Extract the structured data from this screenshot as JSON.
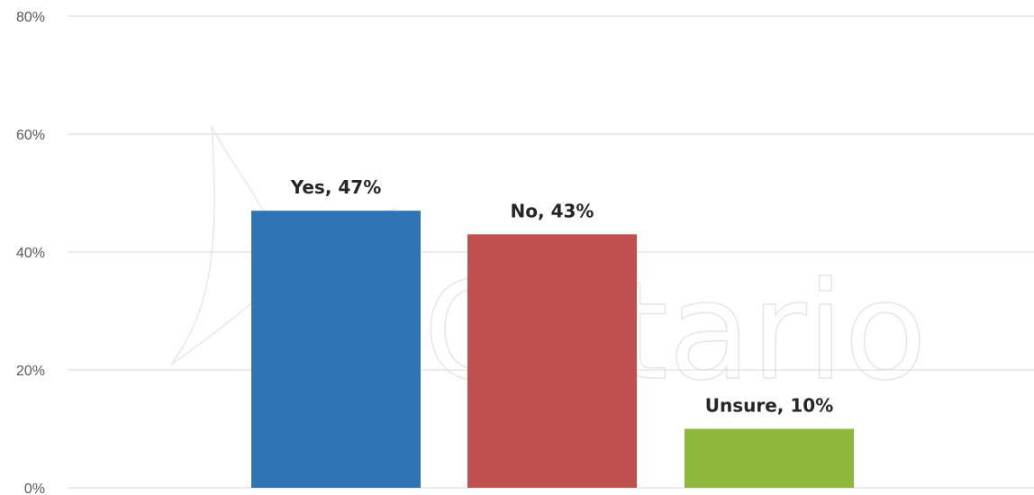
{
  "chart_data": {
    "type": "bar",
    "categories": [
      "Yes",
      "No",
      "Unsure"
    ],
    "values": [
      47,
      43,
      10
    ],
    "data_labels": [
      "Yes, 47%",
      "No, 43%",
      "Unsure, 10%"
    ],
    "bar_colors": [
      "#2e75b6",
      "#c0504d",
      "#8db83c"
    ],
    "ylim": [
      0,
      80
    ],
    "yticks": [
      0,
      20,
      40,
      60,
      80
    ],
    "ytick_labels": [
      "0%",
      "20%",
      "40%",
      "60%",
      "80%"
    ],
    "grid": true,
    "title": "",
    "xlabel": "",
    "ylabel": ""
  },
  "watermark": {
    "text": "Ontario"
  }
}
